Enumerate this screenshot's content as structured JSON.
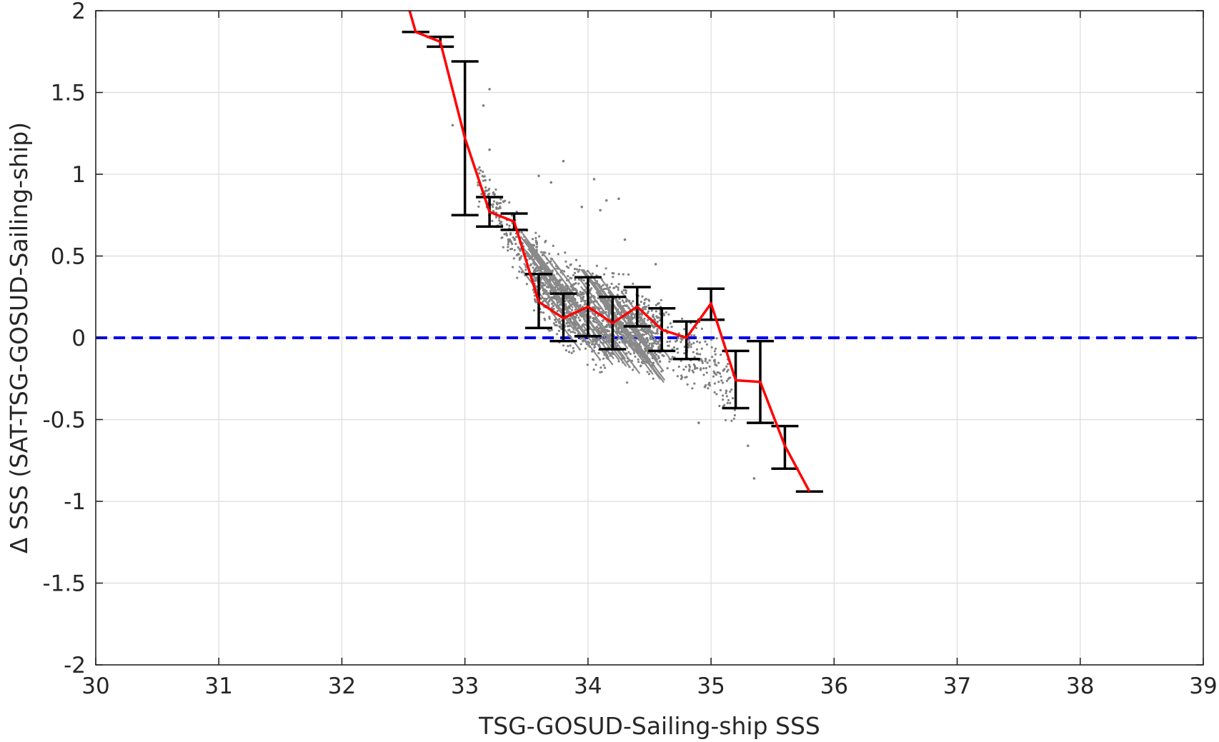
{
  "chart_data": {
    "type": "scatter",
    "xlabel": "TSG-GOSUD-Sailing-ship SSS",
    "ylabel": "Δ SSS (SAT-TSG-GOSUD-Sailing-ship)",
    "xlim": [
      30,
      39
    ],
    "ylim": [
      -2,
      2
    ],
    "xticks": [
      "30",
      "31",
      "32",
      "33",
      "34",
      "35",
      "36",
      "37",
      "38",
      "39"
    ],
    "yticks": [
      "2",
      "1.5",
      "1",
      "0.5",
      "0",
      "-0.5",
      "-1",
      "-1.5",
      "-2"
    ],
    "grid": true,
    "colors": {
      "scatter": "#808080",
      "mean_line": "#ff0000",
      "error_bars": "#000000",
      "zero_line": "#0000ee"
    },
    "reference_line": {
      "y": 0,
      "style": "dashed"
    },
    "mean_curve": {
      "x": [
        32.55,
        32.6,
        32.8,
        33.0,
        33.2,
        33.4,
        33.6,
        33.8,
        34.0,
        34.2,
        34.4,
        34.6,
        34.8,
        35.0,
        35.2,
        35.4,
        35.6,
        35.8
      ],
      "y": [
        2.0,
        1.87,
        1.81,
        1.22,
        0.77,
        0.71,
        0.22,
        0.12,
        0.19,
        0.09,
        0.19,
        0.05,
        0.0,
        0.21,
        -0.26,
        -0.27,
        -0.66,
        -0.94
      ]
    },
    "error_bars": [
      {
        "x": 32.6,
        "low": 1.87,
        "high": 1.87
      },
      {
        "x": 32.8,
        "low": 1.78,
        "high": 1.84
      },
      {
        "x": 33.0,
        "low": 0.75,
        "high": 1.69
      },
      {
        "x": 33.2,
        "low": 0.68,
        "high": 0.86
      },
      {
        "x": 33.4,
        "low": 0.66,
        "high": 0.76
      },
      {
        "x": 33.6,
        "low": 0.06,
        "high": 0.39
      },
      {
        "x": 33.8,
        "low": -0.02,
        "high": 0.27
      },
      {
        "x": 34.0,
        "low": 0.01,
        "high": 0.37
      },
      {
        "x": 34.2,
        "low": -0.07,
        "high": 0.25
      },
      {
        "x": 34.4,
        "low": 0.07,
        "high": 0.31
      },
      {
        "x": 34.6,
        "low": -0.08,
        "high": 0.18
      },
      {
        "x": 34.8,
        "low": -0.13,
        "high": 0.1
      },
      {
        "x": 35.0,
        "low": 0.11,
        "high": 0.3
      },
      {
        "x": 35.2,
        "low": -0.43,
        "high": -0.08
      },
      {
        "x": 35.4,
        "low": -0.52,
        "high": -0.02
      },
      {
        "x": 35.6,
        "low": -0.8,
        "high": -0.54
      },
      {
        "x": 35.8,
        "low": -0.94,
        "high": -0.94
      }
    ],
    "scatter_cloud": {
      "trend_x": [
        32.9,
        33.2,
        33.5,
        33.8,
        34.1,
        34.4,
        34.7,
        35.0,
        35.3,
        35.6
      ],
      "trend_y": [
        1.2,
        0.85,
        0.45,
        0.2,
        0.12,
        0.05,
        -0.05,
        -0.15,
        -0.45,
        -0.75
      ],
      "spread_y": [
        0.1,
        0.1,
        0.15,
        0.2,
        0.2,
        0.18,
        0.15,
        0.15,
        0.15,
        0.15
      ],
      "isolated_points": [
        [
          32.9,
          1.3
        ],
        [
          33.15,
          1.42
        ],
        [
          33.2,
          1.52
        ],
        [
          33.0,
          1.12
        ],
        [
          33.2,
          1.15
        ],
        [
          33.8,
          1.08
        ],
        [
          34.05,
          0.97
        ],
        [
          34.15,
          0.84
        ],
        [
          34.25,
          0.85
        ],
        [
          34.1,
          0.78
        ],
        [
          33.6,
          0.99
        ],
        [
          33.7,
          0.95
        ],
        [
          35.3,
          -0.66
        ],
        [
          35.35,
          -0.86
        ],
        [
          34.9,
          -0.52
        ],
        [
          34.95,
          -0.3
        ],
        [
          35.1,
          -0.2
        ],
        [
          33.95,
          0.8
        ],
        [
          34.3,
          0.6
        ],
        [
          34.55,
          0.45
        ]
      ]
    }
  }
}
